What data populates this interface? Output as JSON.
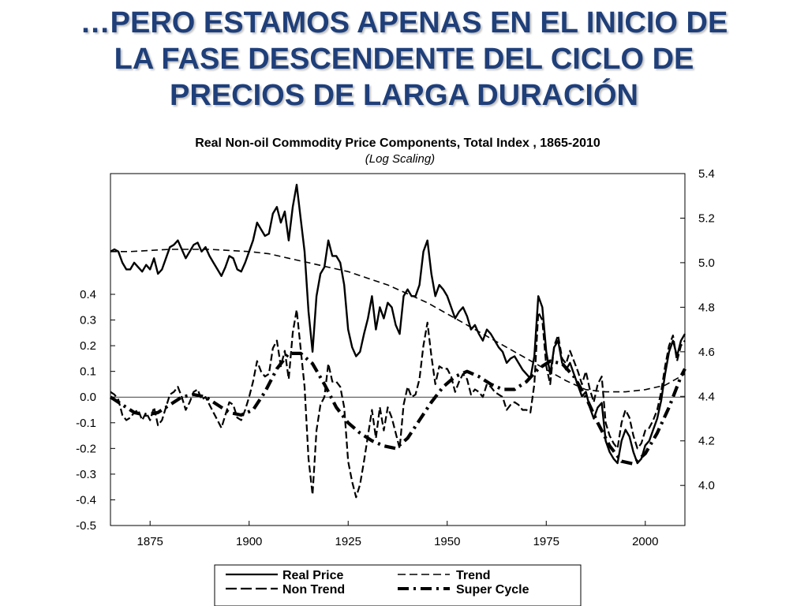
{
  "slide": {
    "title_lines": [
      "…PERO ESTAMOS APENAS EN EL INICIO DE",
      "LA FASE DESCENDENTE DEL CICLO DE",
      "PRECIOS DE LARGA DURACIÓN"
    ],
    "title_color": "#1f3f7a"
  },
  "chart_data": {
    "type": "line",
    "title": "Real Non-oil Commodity Price Components, Total Index , 1865-2010",
    "subtitle": "(Log Scaling)",
    "x_ticks": [
      "1875",
      "1900",
      "1925",
      "1950",
      "1975",
      "2000"
    ],
    "x_tick_values": [
      1875,
      1900,
      1925,
      1950,
      1975,
      2000
    ],
    "xlim": [
      1865,
      2010
    ],
    "left_axis": {
      "ticks": [
        "0.4",
        "0.3",
        "0.2",
        "0.1",
        "0.0",
        "-0.1",
        "-0.2",
        "-0.3",
        "-0.4",
        "-0.5"
      ],
      "tick_values": [
        0.4,
        0.3,
        0.2,
        0.1,
        0.0,
        -0.1,
        -0.2,
        -0.3,
        -0.4,
        -0.5
      ],
      "range": [
        -0.5,
        0.87
      ]
    },
    "right_axis": {
      "ticks": [
        "5.4",
        "5.2",
        "5.0",
        "4.8",
        "4.6",
        "4.4",
        "4.2",
        "4.0"
      ],
      "tick_values": [
        5.4,
        5.2,
        5.0,
        4.8,
        4.6,
        4.4,
        4.2,
        4.0
      ],
      "range": [
        3.82,
        5.4
      ]
    },
    "legend": {
      "position": "bottom",
      "entries": [
        "Real Price",
        "Trend",
        "Non Trend",
        "Super Cycle"
      ]
    },
    "series": [
      {
        "name": "Real Price",
        "axis": "right",
        "style": "solid",
        "x": [
          1865,
          1866,
          1867,
          1868,
          1869,
          1870,
          1871,
          1872,
          1873,
          1874,
          1875,
          1876,
          1877,
          1878,
          1879,
          1880,
          1881,
          1882,
          1883,
          1884,
          1885,
          1886,
          1887,
          1888,
          1889,
          1890,
          1891,
          1892,
          1893,
          1894,
          1895,
          1896,
          1897,
          1898,
          1899,
          1900,
          1901,
          1902,
          1903,
          1904,
          1905,
          1906,
          1907,
          1908,
          1909,
          1910,
          1911,
          1912,
          1913,
          1914,
          1915,
          1916,
          1917,
          1918,
          1919,
          1920,
          1921,
          1922,
          1923,
          1924,
          1925,
          1926,
          1927,
          1928,
          1929,
          1930,
          1931,
          1932,
          1933,
          1934,
          1935,
          1936,
          1937,
          1938,
          1939,
          1940,
          1941,
          1942,
          1943,
          1944,
          1945,
          1946,
          1947,
          1948,
          1949,
          1950,
          1951,
          1952,
          1953,
          1954,
          1955,
          1956,
          1957,
          1958,
          1959,
          1960,
          1961,
          1962,
          1963,
          1964,
          1965,
          1966,
          1967,
          1968,
          1969,
          1970,
          1971,
          1972,
          1973,
          1974,
          1975,
          1976,
          1977,
          1978,
          1979,
          1980,
          1981,
          1982,
          1983,
          1984,
          1985,
          1986,
          1987,
          1988,
          1989,
          1990,
          1991,
          1992,
          1993,
          1994,
          1995,
          1996,
          1997,
          1998,
          1999,
          2000,
          2001,
          2002,
          2003,
          2004,
          2005,
          2006,
          2007,
          2008,
          2009,
          2010
        ],
        "y": [
          5.05,
          5.06,
          5.05,
          5.0,
          4.97,
          4.97,
          5.0,
          4.98,
          4.96,
          4.99,
          4.97,
          5.02,
          4.95,
          4.97,
          5.02,
          5.07,
          5.08,
          5.1,
          5.06,
          5.02,
          5.05,
          5.08,
          5.09,
          5.05,
          5.07,
          5.03,
          5.0,
          4.97,
          4.94,
          4.98,
          5.03,
          5.02,
          4.97,
          4.96,
          5.0,
          5.05,
          5.1,
          5.18,
          5.15,
          5.12,
          5.13,
          5.22,
          5.25,
          5.18,
          5.23,
          5.1,
          5.25,
          5.35,
          5.2,
          5.05,
          4.78,
          4.6,
          4.85,
          4.95,
          4.98,
          5.1,
          5.03,
          5.03,
          5.0,
          4.9,
          4.7,
          4.62,
          4.58,
          4.6,
          4.68,
          4.75,
          4.85,
          4.7,
          4.8,
          4.75,
          4.82,
          4.8,
          4.72,
          4.68,
          4.85,
          4.88,
          4.85,
          4.85,
          4.9,
          5.05,
          5.1,
          4.95,
          4.85,
          4.9,
          4.88,
          4.85,
          4.8,
          4.75,
          4.78,
          4.8,
          4.76,
          4.7,
          4.72,
          4.68,
          4.65,
          4.7,
          4.68,
          4.65,
          4.62,
          4.6,
          4.55,
          4.57,
          4.58,
          4.55,
          4.52,
          4.5,
          4.48,
          4.58,
          4.85,
          4.8,
          4.6,
          4.5,
          4.62,
          4.65,
          4.55,
          4.52,
          4.55,
          4.5,
          4.45,
          4.4,
          4.42,
          4.35,
          4.3,
          4.35,
          4.37,
          4.2,
          4.15,
          4.12,
          4.1,
          4.2,
          4.25,
          4.22,
          4.15,
          4.1,
          4.12,
          4.18,
          4.2,
          4.25,
          4.3,
          4.38,
          4.5,
          4.6,
          4.65,
          4.58,
          4.65,
          4.68
        ]
      },
      {
        "name": "Trend",
        "axis": "right",
        "style": "short-dash",
        "x": [
          1865,
          1870,
          1875,
          1880,
          1885,
          1890,
          1895,
          1900,
          1905,
          1910,
          1915,
          1920,
          1925,
          1930,
          1935,
          1940,
          1945,
          1950,
          1955,
          1960,
          1965,
          1970,
          1975,
          1980,
          1985,
          1990,
          1995,
          2000,
          2005,
          2010
        ],
        "y": [
          5.05,
          5.05,
          5.055,
          5.06,
          5.06,
          5.06,
          5.055,
          5.05,
          5.04,
          5.02,
          5.0,
          4.98,
          4.96,
          4.93,
          4.9,
          4.86,
          4.82,
          4.77,
          4.72,
          4.67,
          4.62,
          4.57,
          4.52,
          4.47,
          4.43,
          4.42,
          4.42,
          4.43,
          4.45,
          4.5
        ]
      },
      {
        "name": "Non Trend",
        "axis": "left",
        "style": "dash",
        "x": [
          1865,
          1866,
          1867,
          1868,
          1869,
          1870,
          1871,
          1872,
          1873,
          1874,
          1875,
          1876,
          1877,
          1878,
          1879,
          1880,
          1881,
          1882,
          1883,
          1884,
          1885,
          1886,
          1887,
          1888,
          1889,
          1890,
          1891,
          1892,
          1893,
          1894,
          1895,
          1896,
          1897,
          1898,
          1899,
          1900,
          1901,
          1902,
          1903,
          1904,
          1905,
          1906,
          1907,
          1908,
          1909,
          1910,
          1911,
          1912,
          1913,
          1914,
          1915,
          1916,
          1917,
          1918,
          1919,
          1920,
          1921,
          1922,
          1923,
          1924,
          1925,
          1926,
          1927,
          1928,
          1929,
          1930,
          1931,
          1932,
          1933,
          1934,
          1935,
          1936,
          1937,
          1938,
          1939,
          1940,
          1941,
          1942,
          1943,
          1944,
          1945,
          1946,
          1947,
          1948,
          1949,
          1950,
          1951,
          1952,
          1953,
          1954,
          1955,
          1956,
          1957,
          1958,
          1959,
          1960,
          1961,
          1962,
          1963,
          1964,
          1965,
          1966,
          1967,
          1968,
          1969,
          1970,
          1971,
          1972,
          1973,
          1974,
          1975,
          1976,
          1977,
          1978,
          1979,
          1980,
          1981,
          1982,
          1983,
          1984,
          1985,
          1986,
          1987,
          1988,
          1989,
          1990,
          1991,
          1992,
          1993,
          1994,
          1995,
          1996,
          1997,
          1998,
          1999,
          2000,
          2001,
          2002,
          2003,
          2004,
          2005,
          2006,
          2007,
          2008,
          2009,
          2010
        ],
        "y": [
          0.02,
          0.01,
          -0.01,
          -0.07,
          -0.09,
          -0.08,
          -0.06,
          -0.05,
          -0.09,
          -0.06,
          -0.09,
          -0.04,
          -0.11,
          -0.09,
          -0.04,
          0.01,
          0.02,
          0.04,
          0.0,
          -0.05,
          -0.02,
          0.02,
          0.03,
          -0.01,
          0.0,
          -0.03,
          -0.06,
          -0.09,
          -0.12,
          -0.07,
          -0.02,
          -0.03,
          -0.08,
          -0.09,
          -0.05,
          0.0,
          0.06,
          0.14,
          0.1,
          0.08,
          0.09,
          0.19,
          0.22,
          0.12,
          0.18,
          0.07,
          0.25,
          0.34,
          0.19,
          0.04,
          -0.24,
          -0.38,
          -0.13,
          -0.03,
          0.0,
          0.13,
          0.06,
          0.06,
          0.04,
          -0.04,
          -0.25,
          -0.33,
          -0.39,
          -0.34,
          -0.25,
          -0.15,
          -0.05,
          -0.16,
          -0.04,
          -0.13,
          -0.04,
          -0.08,
          -0.14,
          -0.2,
          -0.03,
          0.04,
          0.0,
          0.01,
          0.07,
          0.2,
          0.29,
          0.16,
          0.05,
          0.12,
          0.11,
          0.11,
          0.08,
          0.02,
          0.06,
          0.09,
          0.07,
          0.01,
          0.03,
          0.02,
          0.0,
          0.05,
          0.04,
          0.02,
          0.01,
          0.0,
          -0.05,
          -0.03,
          -0.02,
          -0.03,
          -0.05,
          -0.05,
          -0.06,
          0.05,
          0.33,
          0.3,
          0.12,
          0.05,
          0.2,
          0.24,
          0.15,
          0.13,
          0.18,
          0.14,
          0.1,
          0.05,
          0.1,
          0.03,
          -0.02,
          0.05,
          0.08,
          -0.1,
          -0.15,
          -0.18,
          -0.2,
          -0.1,
          -0.05,
          -0.08,
          -0.15,
          -0.2,
          -0.18,
          -0.13,
          -0.12,
          -0.09,
          -0.05,
          0.02,
          0.12,
          0.2,
          0.24,
          0.14,
          0.2,
          0.22
        ]
      },
      {
        "name": "Super Cycle",
        "axis": "left",
        "style": "long-dash-dot",
        "x": [
          1865,
          1868,
          1871,
          1874,
          1877,
          1880,
          1883,
          1886,
          1889,
          1892,
          1895,
          1898,
          1901,
          1904,
          1907,
          1910,
          1913,
          1916,
          1919,
          1922,
          1925,
          1928,
          1931,
          1934,
          1937,
          1940,
          1943,
          1946,
          1949,
          1952,
          1955,
          1958,
          1961,
          1964,
          1967,
          1970,
          1973,
          1976,
          1979,
          1982,
          1985,
          1988,
          1991,
          1994,
          1997,
          2000,
          2003,
          2006,
          2009,
          2010
        ],
        "y": [
          0.0,
          -0.03,
          -0.06,
          -0.07,
          -0.06,
          -0.03,
          0.0,
          0.01,
          0.0,
          -0.03,
          -0.06,
          -0.07,
          -0.05,
          0.02,
          0.11,
          0.17,
          0.17,
          0.13,
          0.05,
          -0.04,
          -0.1,
          -0.14,
          -0.17,
          -0.19,
          -0.2,
          -0.16,
          -0.09,
          -0.02,
          0.04,
          0.08,
          0.1,
          0.08,
          0.05,
          0.03,
          0.03,
          0.06,
          0.11,
          0.14,
          0.13,
          0.08,
          0.0,
          -0.1,
          -0.19,
          -0.25,
          -0.26,
          -0.22,
          -0.14,
          -0.04,
          0.08,
          0.11
        ]
      }
    ]
  }
}
